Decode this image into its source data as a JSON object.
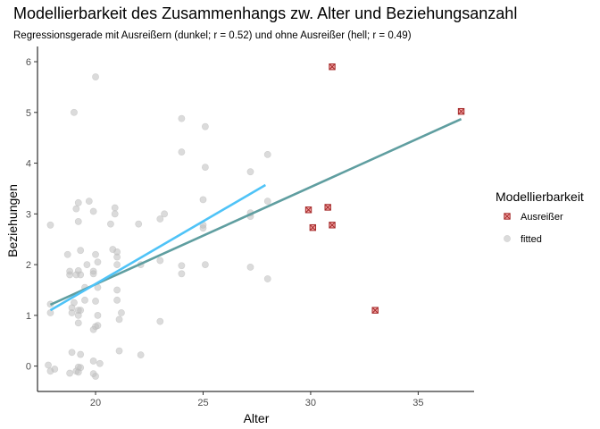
{
  "chart_data": {
    "type": "scatter",
    "title": "Modellierbarkeit des Zusammenhangs zw. Alter und Beziehungsanzahl",
    "subtitle": "Regressionsgerade mit Ausreißern (dunkel; r = 0.52) und ohne Ausreißer (hell; r = 0.49)",
    "xlabel": "Alter",
    "ylabel": "Beziehungen",
    "xlim": [
      17.3,
      37.6
    ],
    "ylim": [
      -0.5,
      6.3
    ],
    "x_ticks": [
      20,
      25,
      30,
      35
    ],
    "y_ticks": [
      0,
      1,
      2,
      3,
      4,
      5,
      6
    ],
    "grid": false,
    "legend": {
      "title": "Modellierbarkeit",
      "placement": "right",
      "entries": [
        "Ausreißer",
        "fitted"
      ]
    },
    "colors": {
      "fitted_points": "#bdbdbd",
      "outlier_fill": "#f4a6a6",
      "outlier_stroke": "#a52a2a",
      "line_with_outliers": "#5f9ea0",
      "line_without_outliers": "#4fc3f7",
      "axis": "#000000"
    },
    "series": [
      {
        "name": "fitted",
        "points": [
          [
            20,
            5.7
          ],
          [
            19,
            5.0
          ],
          [
            24,
            4.88
          ],
          [
            25.1,
            4.72
          ],
          [
            24,
            4.22
          ],
          [
            28,
            4.17
          ],
          [
            25.1,
            3.92
          ],
          [
            27.2,
            3.83
          ],
          [
            19.7,
            3.25
          ],
          [
            19.2,
            3.22
          ],
          [
            20.9,
            3.12
          ],
          [
            25,
            3.28
          ],
          [
            28,
            3.25
          ],
          [
            19.1,
            3.1
          ],
          [
            19.9,
            3.05
          ],
          [
            20.9,
            3.0
          ],
          [
            23.2,
            3.0
          ],
          [
            27.2,
            3.02
          ],
          [
            27.2,
            2.95
          ],
          [
            19.2,
            2.85
          ],
          [
            20.7,
            2.8
          ],
          [
            22,
            2.8
          ],
          [
            23,
            2.9
          ],
          [
            25,
            2.78
          ],
          [
            25,
            2.72
          ],
          [
            17.9,
            2.78
          ],
          [
            19.3,
            2.28
          ],
          [
            20.8,
            2.3
          ],
          [
            21,
            2.25
          ],
          [
            18.7,
            2.2
          ],
          [
            20,
            2.2
          ],
          [
            21,
            2.15
          ],
          [
            20.1,
            2.05
          ],
          [
            19.6,
            2.0
          ],
          [
            21,
            2.0
          ],
          [
            22.1,
            2.0
          ],
          [
            23,
            2.08
          ],
          [
            24,
            1.98
          ],
          [
            25.1,
            2.0
          ],
          [
            27.2,
            1.95
          ],
          [
            18.8,
            1.87
          ],
          [
            19.2,
            1.88
          ],
          [
            19.9,
            1.87
          ],
          [
            19.9,
            1.82
          ],
          [
            18.8,
            1.8
          ],
          [
            19.1,
            1.8
          ],
          [
            19.3,
            1.8
          ],
          [
            24,
            1.82
          ],
          [
            28,
            1.72
          ],
          [
            19.5,
            1.55
          ],
          [
            20.1,
            1.55
          ],
          [
            21,
            1.5
          ],
          [
            19,
            1.25
          ],
          [
            19.5,
            1.3
          ],
          [
            20,
            1.28
          ],
          [
            21,
            1.3
          ],
          [
            17.9,
            1.22
          ],
          [
            18.9,
            1.15
          ],
          [
            19.2,
            1.1
          ],
          [
            19.3,
            1.1
          ],
          [
            18.9,
            1.05
          ],
          [
            17.9,
            1.05
          ],
          [
            19.2,
            1.0
          ],
          [
            20.1,
            1.0
          ],
          [
            21.2,
            1.05
          ],
          [
            21.1,
            0.92
          ],
          [
            23,
            0.88
          ],
          [
            19.2,
            0.85
          ],
          [
            20,
            0.78
          ],
          [
            20.1,
            0.8
          ],
          [
            19.9,
            0.72
          ],
          [
            18.9,
            0.27
          ],
          [
            19.3,
            0.23
          ],
          [
            21.1,
            0.3
          ],
          [
            22.1,
            0.22
          ],
          [
            19.9,
            0.1
          ],
          [
            20.2,
            0.05
          ],
          [
            17.8,
            0.02
          ],
          [
            19.2,
            -0.02
          ],
          [
            19.3,
            -0.03
          ],
          [
            18.1,
            -0.06
          ],
          [
            17.9,
            -0.1
          ],
          [
            19.1,
            -0.1
          ],
          [
            18.8,
            -0.14
          ],
          [
            19.9,
            -0.15
          ],
          [
            20.0,
            -0.2
          ],
          [
            19.2,
            -0.12
          ]
        ]
      },
      {
        "name": "Ausreißer",
        "points": [
          [
            31,
            5.9
          ],
          [
            37,
            5.02
          ],
          [
            29.9,
            3.08
          ],
          [
            30.8,
            3.13
          ],
          [
            31,
            2.78
          ],
          [
            30.1,
            2.73
          ],
          [
            33,
            1.1
          ]
        ]
      }
    ],
    "regression_lines": [
      {
        "x": [
          17.9,
          37.0
        ],
        "y": [
          1.21,
          4.87
        ]
      },
      {
        "x": [
          17.9,
          27.9
        ],
        "y": [
          1.1,
          3.57
        ]
      }
    ]
  }
}
